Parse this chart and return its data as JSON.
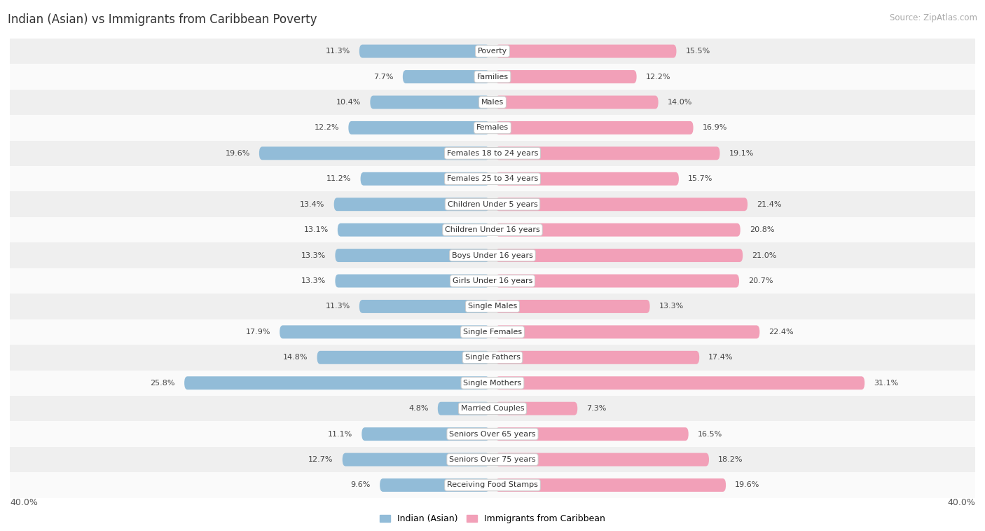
{
  "title": "Indian (Asian) vs Immigrants from Caribbean Poverty",
  "source": "Source: ZipAtlas.com",
  "categories": [
    "Poverty",
    "Families",
    "Males",
    "Females",
    "Females 18 to 24 years",
    "Females 25 to 34 years",
    "Children Under 5 years",
    "Children Under 16 years",
    "Boys Under 16 years",
    "Girls Under 16 years",
    "Single Males",
    "Single Females",
    "Single Fathers",
    "Single Mothers",
    "Married Couples",
    "Seniors Over 65 years",
    "Seniors Over 75 years",
    "Receiving Food Stamps"
  ],
  "indian_asian": [
    11.3,
    7.7,
    10.4,
    12.2,
    19.6,
    11.2,
    13.4,
    13.1,
    13.3,
    13.3,
    11.3,
    17.9,
    14.8,
    25.8,
    4.8,
    11.1,
    12.7,
    9.6
  ],
  "caribbean": [
    15.5,
    12.2,
    14.0,
    16.9,
    19.1,
    15.7,
    21.4,
    20.8,
    21.0,
    20.7,
    13.3,
    22.4,
    17.4,
    31.1,
    7.3,
    16.5,
    18.2,
    19.6
  ],
  "blue_color": "#92bcd8",
  "pink_color": "#f2a0b8",
  "blue_label": "Indian (Asian)",
  "pink_label": "Immigrants from Caribbean",
  "bg_row_odd": "#efefef",
  "bg_row_even": "#fafafa",
  "axis_max": 40.0,
  "axis_label": "40.0%",
  "bar_height": 0.52,
  "title_fontsize": 12,
  "source_fontsize": 8.5,
  "value_fontsize": 8,
  "category_fontsize": 8
}
